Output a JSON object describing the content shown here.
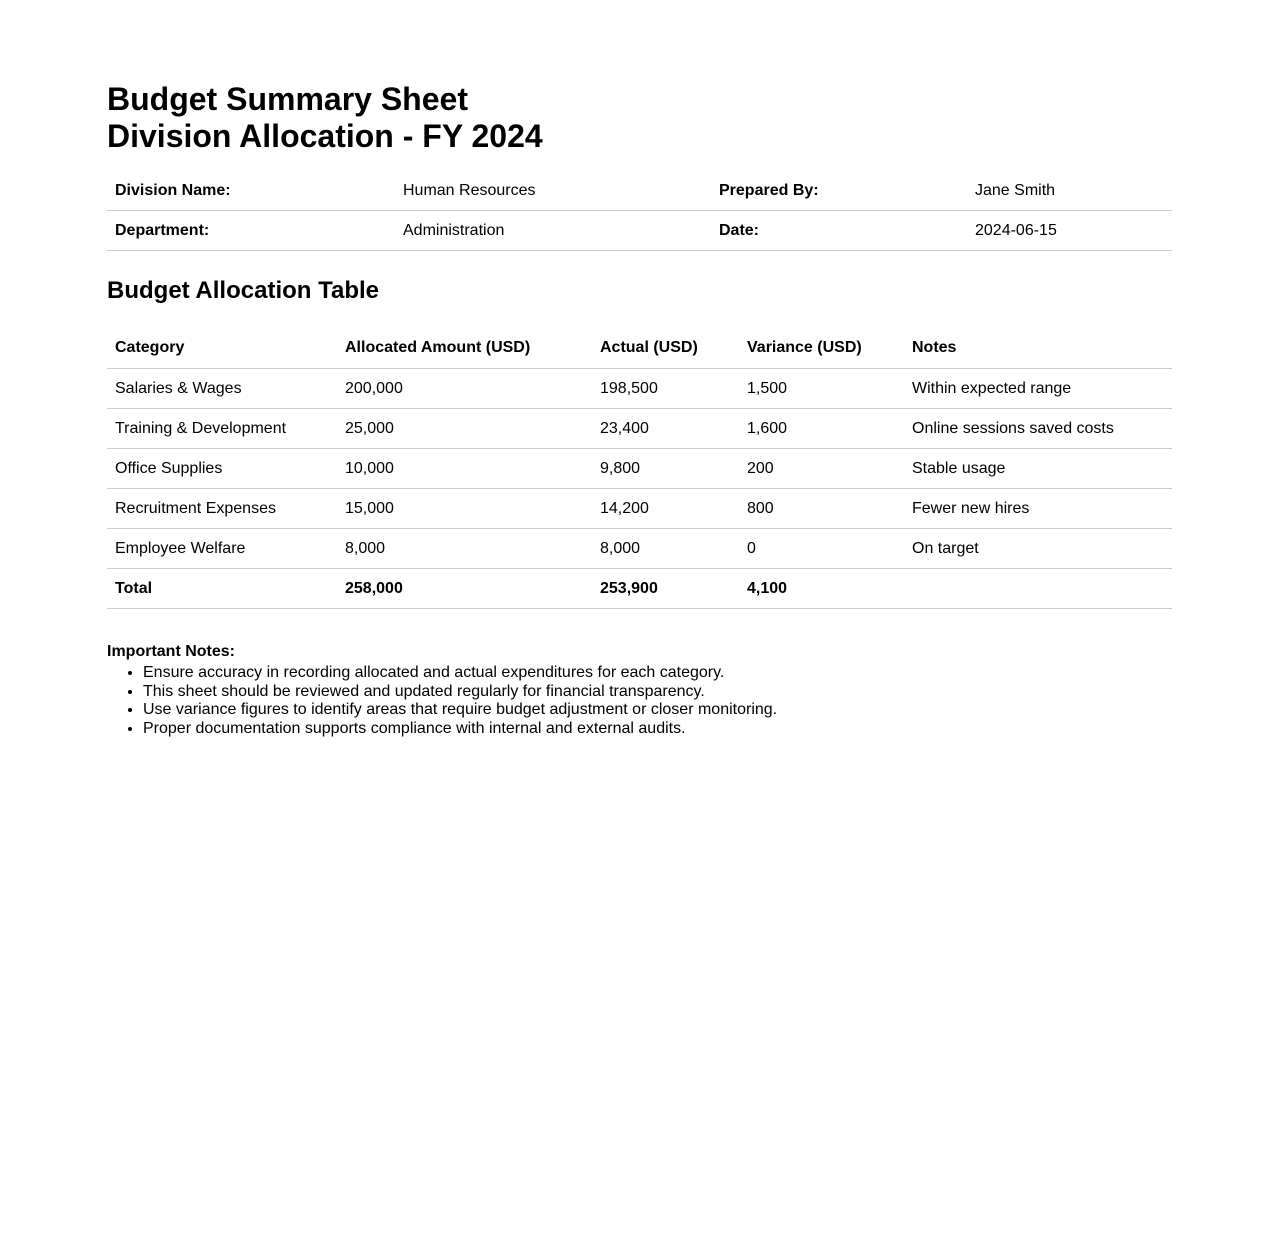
{
  "colors": {
    "background": "#ffffff",
    "text": "#000000",
    "divider": "#cccccc"
  },
  "document": {
    "title_line1": "Budget Summary Sheet",
    "title_line2": "Division Allocation - FY 2024"
  },
  "info_grid": {
    "rows": [
      {
        "label_left": "Division Name:",
        "value_left": "Human Resources",
        "label_right": "Prepared By:",
        "value_right": "Jane Smith"
      },
      {
        "label_left": "Department:",
        "value_left": "Administration",
        "label_right": "Date:",
        "value_right": "2024-06-15"
      }
    ]
  },
  "budget_table": {
    "heading": "Budget Allocation Table",
    "columns": {
      "category": "Category",
      "allocated": "Allocated Amount (USD)",
      "actual": "Actual (USD)",
      "variance": "Variance (USD)",
      "notes": "Notes"
    },
    "rows": [
      {
        "category": "Salaries & Wages",
        "allocated": "200,000",
        "actual": "198,500",
        "variance": "1,500",
        "notes": "Within expected range"
      },
      {
        "category": "Training & Development",
        "allocated": "25,000",
        "actual": "23,400",
        "variance": "1,600",
        "notes": "Online sessions saved costs"
      },
      {
        "category": "Office Supplies",
        "allocated": "10,000",
        "actual": "9,800",
        "variance": "200",
        "notes": "Stable usage"
      },
      {
        "category": "Recruitment Expenses",
        "allocated": "15,000",
        "actual": "14,200",
        "variance": "800",
        "notes": "Fewer new hires"
      },
      {
        "category": "Employee Welfare",
        "allocated": "8,000",
        "actual": "8,000",
        "variance": "0",
        "notes": "On target"
      }
    ],
    "total_row": {
      "category": "Total",
      "allocated": "258,000",
      "actual": "253,900",
      "variance": "4,100",
      "notes": ""
    }
  },
  "notes_section": {
    "heading": "Important Notes:",
    "items": [
      "Ensure accuracy in recording allocated and actual expenditures for each category.",
      "This sheet should be reviewed and updated regularly for financial transparency.",
      "Use variance figures to identify areas that require budget adjustment or closer monitoring.",
      "Proper documentation supports compliance with internal and external audits."
    ]
  }
}
